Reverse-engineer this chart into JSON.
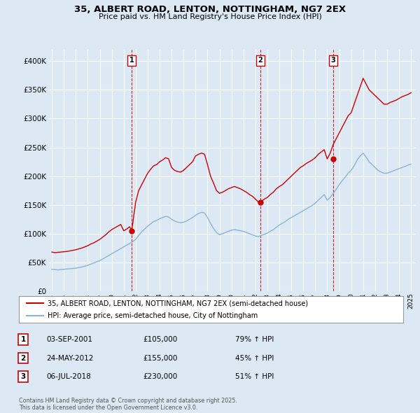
{
  "title": "35, ALBERT ROAD, LENTON, NOTTINGHAM, NG7 2EX",
  "subtitle": "Price paid vs. HM Land Registry's House Price Index (HPI)",
  "background_color": "#dce9f5",
  "plot_bg_color": "#dce9f5",
  "red_line_color": "#cc0000",
  "blue_line_color": "#8ab4d4",
  "grid_color": "#ffffff",
  "ylim": [
    0,
    420000
  ],
  "yticks": [
    0,
    50000,
    100000,
    150000,
    200000,
    250000,
    300000,
    350000,
    400000
  ],
  "ytick_labels": [
    "£0",
    "£50K",
    "£100K",
    "£150K",
    "£200K",
    "£250K",
    "£300K",
    "£350K",
    "£400K"
  ],
  "sale_prices": [
    105000,
    155000,
    230000
  ],
  "sale_labels": [
    "1",
    "2",
    "3"
  ],
  "sale_year_floats": [
    2001.667,
    2012.417,
    2018.5
  ],
  "vline_color": "#cc0000",
  "legend_entries": [
    "35, ALBERT ROAD, LENTON, NOTTINGHAM, NG7 2EX (semi-detached house)",
    "HPI: Average price, semi-detached house, City of Nottingham"
  ],
  "table_rows": [
    [
      "1",
      "03-SEP-2001",
      "£105,000",
      "79% ↑ HPI"
    ],
    [
      "2",
      "24-MAY-2012",
      "£155,000",
      "45% ↑ HPI"
    ],
    [
      "3",
      "06-JUL-2018",
      "£230,000",
      "51% ↑ HPI"
    ]
  ],
  "footnote": "Contains HM Land Registry data © Crown copyright and database right 2025.\nThis data is licensed under the Open Government Licence v3.0.",
  "red_x": [
    1995.0,
    1995.25,
    1995.5,
    1995.75,
    1996.0,
    1996.25,
    1996.5,
    1996.75,
    1997.0,
    1997.25,
    1997.5,
    1997.75,
    1998.0,
    1998.25,
    1998.5,
    1998.75,
    1999.0,
    1999.25,
    1999.5,
    1999.75,
    2000.0,
    2000.25,
    2000.5,
    2000.75,
    2001.0,
    2001.25,
    2001.5,
    2001.667,
    2002.0,
    2002.25,
    2002.5,
    2002.75,
    2003.0,
    2003.25,
    2003.5,
    2003.75,
    2004.0,
    2004.25,
    2004.5,
    2004.75,
    2005.0,
    2005.25,
    2005.5,
    2005.75,
    2006.0,
    2006.25,
    2006.5,
    2006.75,
    2007.0,
    2007.25,
    2007.5,
    2007.75,
    2008.0,
    2008.25,
    2008.5,
    2008.75,
    2009.0,
    2009.25,
    2009.5,
    2009.75,
    2010.0,
    2010.25,
    2010.5,
    2010.75,
    2011.0,
    2011.25,
    2011.5,
    2011.75,
    2012.0,
    2012.25,
    2012.417,
    2012.75,
    2013.0,
    2013.25,
    2013.5,
    2013.75,
    2014.0,
    2014.25,
    2014.5,
    2014.75,
    2015.0,
    2015.25,
    2015.5,
    2015.75,
    2016.0,
    2016.25,
    2016.5,
    2016.75,
    2017.0,
    2017.25,
    2017.5,
    2017.75,
    2018.0,
    2018.25,
    2018.5,
    2018.75,
    2019.0,
    2019.25,
    2019.5,
    2019.75,
    2020.0,
    2020.25,
    2020.5,
    2020.75,
    2021.0,
    2021.25,
    2021.5,
    2021.75,
    2022.0,
    2022.25,
    2022.5,
    2022.75,
    2023.0,
    2023.25,
    2023.5,
    2023.75,
    2024.0,
    2024.25,
    2024.5,
    2024.75,
    2025.0
  ],
  "red_y": [
    68000,
    67000,
    67500,
    68000,
    68500,
    69000,
    70000,
    71000,
    72000,
    73500,
    75000,
    77000,
    79000,
    82000,
    84000,
    87000,
    90000,
    94000,
    98000,
    103000,
    107000,
    110000,
    113000,
    116000,
    105000,
    108000,
    112000,
    105000,
    155000,
    175000,
    185000,
    195000,
    205000,
    212000,
    218000,
    220000,
    225000,
    228000,
    232000,
    230000,
    215000,
    210000,
    208000,
    207000,
    210000,
    215000,
    220000,
    225000,
    235000,
    238000,
    240000,
    238000,
    220000,
    200000,
    188000,
    175000,
    170000,
    172000,
    175000,
    178000,
    180000,
    182000,
    180000,
    178000,
    175000,
    172000,
    168000,
    165000,
    160000,
    155000,
    155000,
    160000,
    163000,
    168000,
    172000,
    178000,
    182000,
    185000,
    190000,
    195000,
    200000,
    205000,
    210000,
    215000,
    218000,
    222000,
    225000,
    228000,
    232000,
    238000,
    242000,
    246000,
    230000,
    240000,
    255000,
    265000,
    275000,
    285000,
    295000,
    305000,
    310000,
    325000,
    340000,
    355000,
    370000,
    360000,
    350000,
    345000,
    340000,
    335000,
    330000,
    325000,
    325000,
    328000,
    330000,
    332000,
    335000,
    338000,
    340000,
    342000,
    345000
  ],
  "blue_x": [
    1995.0,
    1995.25,
    1995.5,
    1995.75,
    1996.0,
    1996.25,
    1996.5,
    1996.75,
    1997.0,
    1997.25,
    1997.5,
    1997.75,
    1998.0,
    1998.25,
    1998.5,
    1998.75,
    1999.0,
    1999.25,
    1999.5,
    1999.75,
    2000.0,
    2000.25,
    2000.5,
    2000.75,
    2001.0,
    2001.25,
    2001.5,
    2001.75,
    2002.0,
    2002.25,
    2002.5,
    2002.75,
    2003.0,
    2003.25,
    2003.5,
    2003.75,
    2004.0,
    2004.25,
    2004.5,
    2004.75,
    2005.0,
    2005.25,
    2005.5,
    2005.75,
    2006.0,
    2006.25,
    2006.5,
    2006.75,
    2007.0,
    2007.25,
    2007.5,
    2007.75,
    2008.0,
    2008.25,
    2008.5,
    2008.75,
    2009.0,
    2009.25,
    2009.5,
    2009.75,
    2010.0,
    2010.25,
    2010.5,
    2010.75,
    2011.0,
    2011.25,
    2011.5,
    2011.75,
    2012.0,
    2012.25,
    2012.5,
    2012.75,
    2013.0,
    2013.25,
    2013.5,
    2013.75,
    2014.0,
    2014.25,
    2014.5,
    2014.75,
    2015.0,
    2015.25,
    2015.5,
    2015.75,
    2016.0,
    2016.25,
    2016.5,
    2016.75,
    2017.0,
    2017.25,
    2017.5,
    2017.75,
    2018.0,
    2018.25,
    2018.5,
    2018.75,
    2019.0,
    2019.25,
    2019.5,
    2019.75,
    2020.0,
    2020.25,
    2020.5,
    2020.75,
    2021.0,
    2021.25,
    2021.5,
    2021.75,
    2022.0,
    2022.25,
    2022.5,
    2022.75,
    2023.0,
    2023.25,
    2023.5,
    2023.75,
    2024.0,
    2024.25,
    2024.5,
    2024.75,
    2025.0
  ],
  "blue_y": [
    38000,
    37500,
    37000,
    37500,
    38000,
    38500,
    39000,
    39500,
    40000,
    41000,
    42000,
    43500,
    45000,
    47000,
    49000,
    51000,
    53000,
    56000,
    59000,
    62000,
    65000,
    68000,
    71000,
    74000,
    77000,
    80000,
    83000,
    86000,
    90000,
    97000,
    103000,
    108000,
    113000,
    117000,
    121000,
    123000,
    126000,
    128000,
    130000,
    129000,
    125000,
    122000,
    120000,
    119000,
    120000,
    122000,
    125000,
    128000,
    132000,
    135000,
    137000,
    136000,
    128000,
    118000,
    109000,
    102000,
    98000,
    100000,
    102000,
    104000,
    106000,
    107000,
    106000,
    105000,
    104000,
    102000,
    100000,
    98000,
    96000,
    95000,
    97000,
    99000,
    101000,
    104000,
    107000,
    111000,
    115000,
    118000,
    121000,
    125000,
    128000,
    131000,
    134000,
    137000,
    140000,
    143000,
    146000,
    149000,
    153000,
    158000,
    163000,
    168000,
    158000,
    163000,
    170000,
    177000,
    185000,
    192000,
    198000,
    205000,
    210000,
    218000,
    228000,
    235000,
    240000,
    233000,
    225000,
    220000,
    215000,
    210000,
    207000,
    205000,
    205000,
    207000,
    209000,
    211000,
    213000,
    215000,
    217000,
    219000,
    221000
  ]
}
